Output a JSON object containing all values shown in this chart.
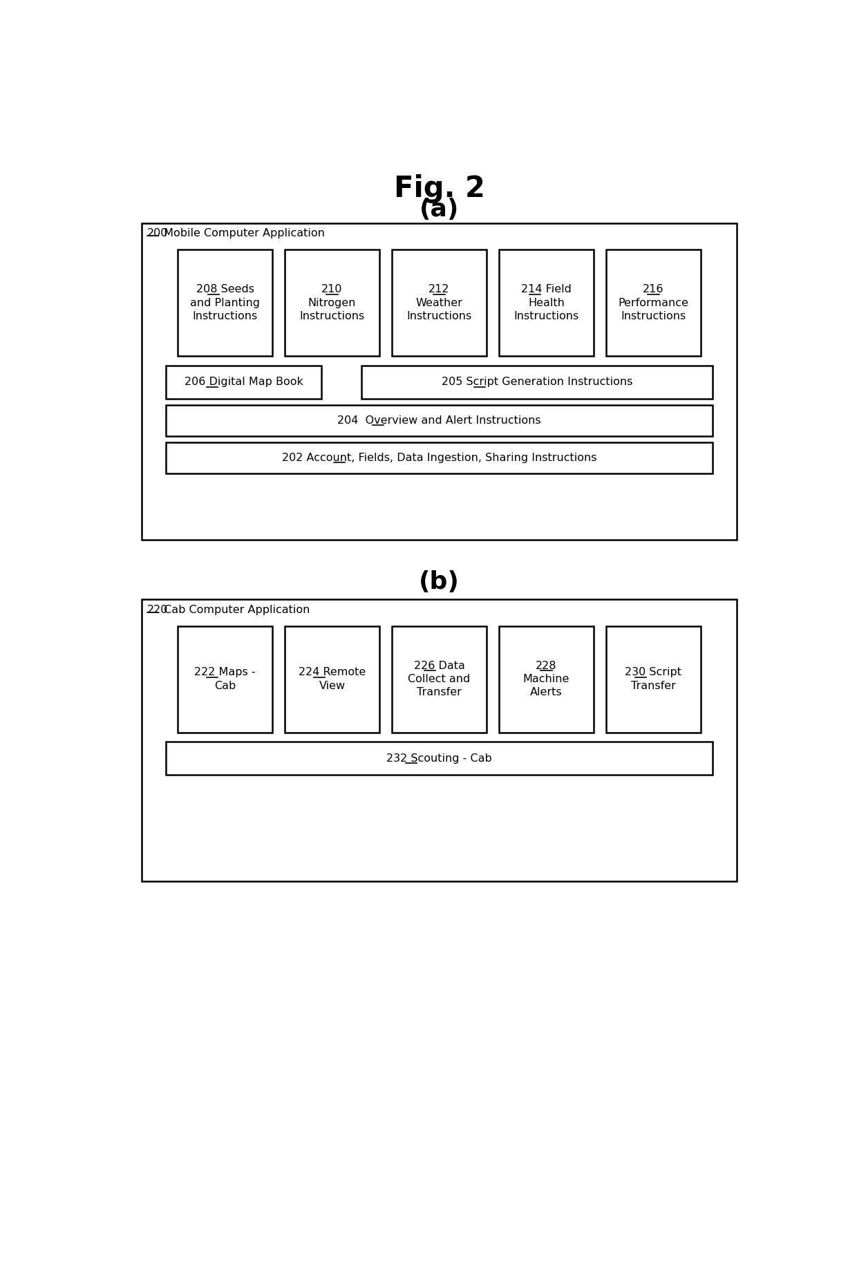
{
  "fig_title": "Fig. 2",
  "bg_color": "#ffffff",
  "section_a": {
    "subtitle": "(a)",
    "outer_label_num": "200",
    "outer_label_text": " Mobile Computer Application",
    "top_boxes": [
      {
        "lines": [
          "208 Seeds",
          "and Planting",
          "Instructions"
        ]
      },
      {
        "lines": [
          "210",
          "Nitrogen",
          "Instructions"
        ]
      },
      {
        "lines": [
          "212",
          "Weather",
          "Instructions"
        ]
      },
      {
        "lines": [
          "214 Field",
          "Health",
          "Instructions"
        ]
      },
      {
        "lines": [
          "216",
          "Performance",
          "Instructions"
        ]
      }
    ],
    "mid_boxes": [
      {
        "lines": [
          "206 Digital Map Book"
        ]
      },
      {
        "lines": [
          "205 Script Generation Instructions"
        ]
      }
    ],
    "wide_boxes": [
      {
        "lines": [
          "204  Overview and Alert Instructions"
        ]
      },
      {
        "lines": [
          "202 Account, Fields, Data Ingestion, Sharing Instructions"
        ]
      }
    ]
  },
  "section_b": {
    "subtitle": "(b)",
    "outer_label_num": "220",
    "outer_label_text": " Cab Computer Application",
    "top_boxes": [
      {
        "lines": [
          "222 Maps -",
          "Cab"
        ]
      },
      {
        "lines": [
          "224 Remote",
          "View"
        ]
      },
      {
        "lines": [
          "226 Data",
          "Collect and",
          "Transfer"
        ]
      },
      {
        "lines": [
          "228",
          "Machine",
          "Alerts"
        ]
      },
      {
        "lines": [
          "230 Script",
          "Transfer"
        ]
      }
    ],
    "wide_boxes": [
      {
        "lines": [
          "232 Scouting - Cab"
        ]
      }
    ]
  }
}
